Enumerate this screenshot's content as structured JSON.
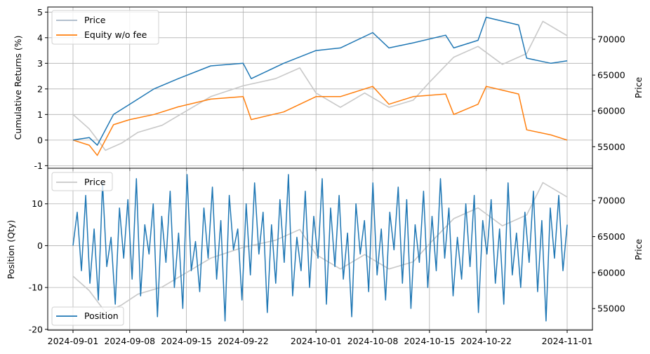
{
  "chart_data": [
    {
      "type": "line",
      "xlabel": "",
      "ylabel": "Cumulative Returns (%)",
      "y2label": "Price",
      "x_ticks": [],
      "ylim": [
        -1.1,
        5.2
      ],
      "y_ticks": [
        -1,
        0,
        1,
        2,
        3,
        4,
        5
      ],
      "y2lim": [
        52000,
        74500
      ],
      "y2_ticks": [
        55000,
        60000,
        65000,
        70000
      ],
      "grid": true,
      "legend": "upper left",
      "series": [
        {
          "name": "Price",
          "axis": "right",
          "color": "#c8c8c8",
          "x": [
            "2024-09-01",
            "2024-09-03",
            "2024-09-05",
            "2024-09-07",
            "2024-09-09",
            "2024-09-12",
            "2024-09-15",
            "2024-09-18",
            "2024-09-22",
            "2024-09-26",
            "2024-09-29",
            "2024-10-01",
            "2024-10-04",
            "2024-10-07",
            "2024-10-10",
            "2024-10-13",
            "2024-10-15",
            "2024-10-18",
            "2024-10-21",
            "2024-10-24",
            "2024-10-27",
            "2024-10-29",
            "2024-11-01"
          ],
          "values": [
            59500,
            57500,
            54500,
            55500,
            57000,
            58000,
            60000,
            62000,
            63500,
            64500,
            66000,
            62500,
            60500,
            62500,
            60500,
            61500,
            64000,
            67500,
            69000,
            66500,
            68000,
            72500,
            70500
          ]
        },
        {
          "name": "Equity w/o fee",
          "axis": "left",
          "color": "#ff7f0e",
          "x": [
            "2024-09-01",
            "2024-09-03",
            "2024-09-04",
            "2024-09-06",
            "2024-09-08",
            "2024-09-11",
            "2024-09-14",
            "2024-09-18",
            "2024-09-22",
            "2024-09-23",
            "2024-09-27",
            "2024-10-01",
            "2024-10-04",
            "2024-10-08",
            "2024-10-10",
            "2024-10-13",
            "2024-10-17",
            "2024-10-18",
            "2024-10-21",
            "2024-10-22",
            "2024-10-26",
            "2024-10-27",
            "2024-10-30",
            "2024-11-01"
          ],
          "values": [
            0.0,
            -0.2,
            -0.6,
            0.6,
            0.8,
            1.0,
            1.3,
            1.6,
            1.7,
            0.8,
            1.1,
            1.7,
            1.7,
            2.1,
            1.4,
            1.7,
            1.8,
            1.0,
            1.4,
            2.1,
            1.8,
            0.4,
            0.2,
            0.0
          ]
        },
        {
          "name": "",
          "axis": "left",
          "color": "#1f77b4",
          "x": [
            "2024-09-01",
            "2024-09-03",
            "2024-09-04",
            "2024-09-06",
            "2024-09-08",
            "2024-09-11",
            "2024-09-14",
            "2024-09-18",
            "2024-09-22",
            "2024-09-23",
            "2024-09-27",
            "2024-10-01",
            "2024-10-04",
            "2024-10-08",
            "2024-10-10",
            "2024-10-13",
            "2024-10-17",
            "2024-10-18",
            "2024-10-21",
            "2024-10-22",
            "2024-10-26",
            "2024-10-27",
            "2024-10-30",
            "2024-11-01"
          ],
          "values": [
            0.0,
            0.1,
            -0.2,
            1.0,
            1.4,
            2.0,
            2.4,
            2.9,
            3.0,
            2.4,
            3.0,
            3.5,
            3.6,
            4.2,
            3.6,
            3.8,
            4.1,
            3.6,
            3.9,
            4.8,
            4.5,
            3.2,
            3.0,
            3.1
          ]
        }
      ]
    },
    {
      "type": "line",
      "xlabel": "",
      "ylabel": "Position (Qty)",
      "y2label": "Price",
      "x_ticks": [
        "2024-09-01",
        "2024-09-08",
        "2024-09-15",
        "2024-09-22",
        "2024-10-01",
        "2024-10-08",
        "2024-10-15",
        "2024-10-22",
        "2024-11-01"
      ],
      "ylim": [
        -20.2,
        18.5
      ],
      "y_ticks": [
        -20,
        -10,
        0,
        10
      ],
      "y2lim": [
        52000,
        74500
      ],
      "y2_ticks": [
        55000,
        60000,
        65000,
        70000
      ],
      "grid": true,
      "legend": "upper left / lower left",
      "series": [
        {
          "name": "Price",
          "axis": "right",
          "color": "#c8c8c8",
          "x": [
            "2024-09-01",
            "2024-09-03",
            "2024-09-05",
            "2024-09-07",
            "2024-09-09",
            "2024-09-12",
            "2024-09-15",
            "2024-09-18",
            "2024-09-22",
            "2024-09-26",
            "2024-09-29",
            "2024-10-01",
            "2024-10-04",
            "2024-10-07",
            "2024-10-10",
            "2024-10-13",
            "2024-10-15",
            "2024-10-18",
            "2024-10-21",
            "2024-10-24",
            "2024-10-27",
            "2024-10-29",
            "2024-11-01"
          ],
          "values": [
            59500,
            57500,
            54500,
            55500,
            57000,
            58000,
            60000,
            62000,
            63500,
            64500,
            66000,
            62500,
            60500,
            62500,
            60500,
            61500,
            64000,
            67500,
            69000,
            66500,
            68000,
            72500,
            70500
          ]
        },
        {
          "name": "Position",
          "axis": "left",
          "color": "#1f77b4",
          "x_range": [
            "2024-09-01",
            "2024-11-01"
          ],
          "values": [
            0,
            8,
            -6,
            12,
            -9,
            4,
            -13,
            15,
            -5,
            2,
            -14,
            9,
            -3,
            11,
            -8,
            16,
            -12,
            5,
            -2,
            10,
            -17,
            7,
            -4,
            13,
            -10,
            3,
            -15,
            17,
            -6,
            1,
            -11,
            9,
            -3,
            14,
            -8,
            6,
            -18,
            12,
            -1,
            4,
            -13,
            10,
            -7,
            15,
            -2,
            8,
            -16,
            5,
            -9,
            11,
            -4,
            17,
            -12,
            2,
            -6,
            13,
            -10,
            7,
            -3,
            16,
            -14,
            9,
            -5,
            12,
            -8,
            3,
            -17,
            10,
            -2,
            6,
            -11,
            15,
            -7,
            4,
            -13,
            8,
            -1,
            14,
            -9,
            11,
            -15,
            5,
            -4,
            13,
            -10,
            7,
            -6,
            16,
            -3,
            9,
            -12,
            2,
            -8,
            10,
            -5,
            12,
            -16,
            6,
            -2,
            11,
            -9,
            4,
            -14,
            15,
            -7,
            3,
            -10,
            8,
            -4,
            13,
            -11,
            6,
            -18,
            9,
            -3,
            12,
            -6,
            5
          ]
        }
      ]
    }
  ]
}
